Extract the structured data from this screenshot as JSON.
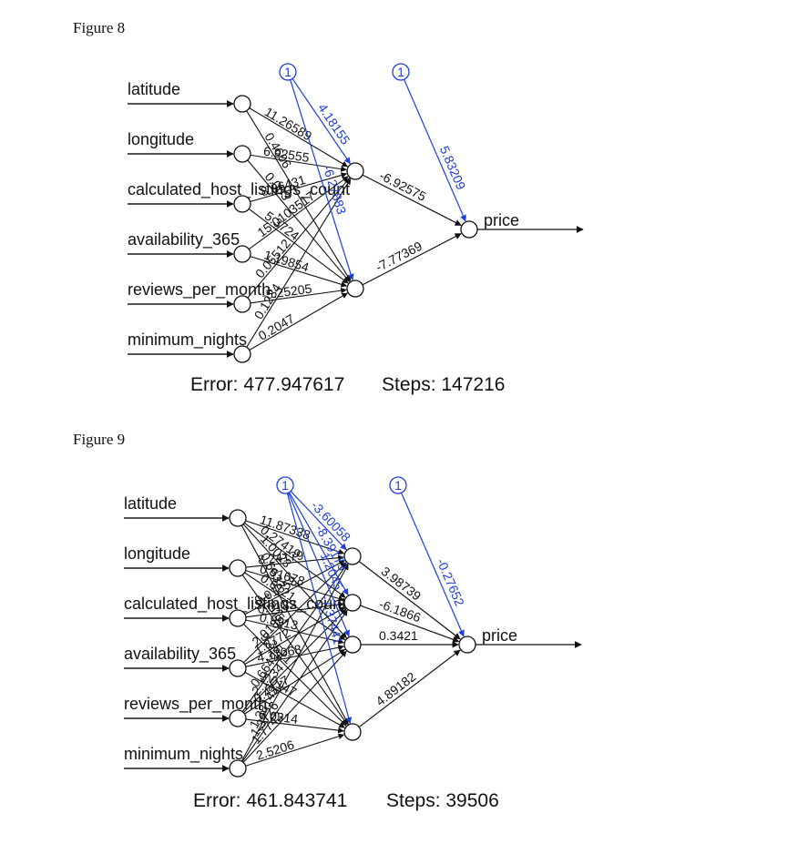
{
  "colors": {
    "black": "#111111",
    "blue": "#1f3fd6"
  },
  "figures": [
    {
      "caption": "Figure 8",
      "bias_label": "1",
      "inputs": [
        "latitude",
        "longitude",
        "calculated_host_listings_count",
        "availability_365",
        "reviews_per_month",
        "minimum_nights"
      ],
      "hidden_count": 2,
      "output": "price",
      "input_weights": [
        "11.26589",
        "6.92555",
        "8.96431",
        "15.0103517",
        "0.05512",
        "0.1234",
        "0.4606",
        "0.003",
        "5.3724",
        "1.19854",
        "-5.25205",
        "0.2047"
      ],
      "hidden_bias_weights": [
        "4.18155",
        "-6.27883"
      ],
      "output_bias_weight": "5.83209",
      "hidden_output_weights": [
        "-6.92575",
        "-7.77369"
      ],
      "error_label": "Error: 477.947617",
      "steps_label": "Steps: 147216"
    },
    {
      "caption": "Figure 9",
      "bias_label": "1",
      "inputs": [
        "latitude",
        "longitude",
        "calculated_host_listings_count",
        "availability_365",
        "reviews_per_month",
        "minimum_nights"
      ],
      "hidden_count": 4,
      "output": "price",
      "input_weights": [
        "11.87338",
        "8.24179",
        "0.01358",
        "2.0185",
        "0.66427",
        "1.38142",
        "0.27419",
        "0.91678",
        "0.0182",
        "1.8772",
        "2.1234",
        "1.3726",
        "1.0023",
        "0.6121",
        "0.9913",
        "4.11068",
        "0.4417",
        "1.7742",
        "0.6632",
        "1.2051",
        "9.3521",
        "1.0147",
        "0.0314",
        "2.5206"
      ],
      "hidden_bias_weights": [
        "-3.60058",
        "-8.39173",
        "1.2045",
        "-7.37441"
      ],
      "output_bias_weight": "-0.27652",
      "hidden_output_weights": [
        "3.98739",
        "-6.1866",
        "0.3421",
        "4.89182"
      ],
      "error_label": "Error: 461.843741",
      "steps_label": "Steps: 39506"
    }
  ]
}
